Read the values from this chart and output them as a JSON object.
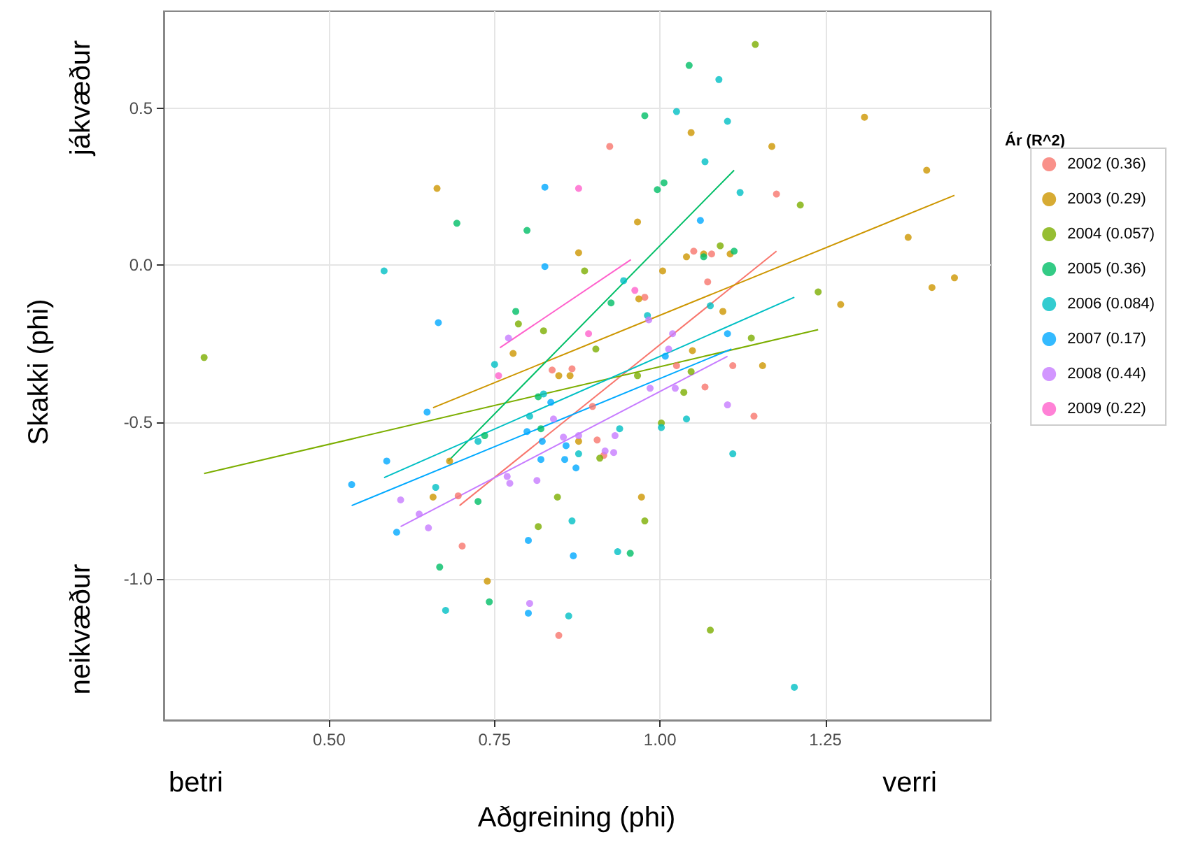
{
  "chart_data": {
    "type": "scatter",
    "xlabel": "Aðgreining (phi)",
    "ylabel": "Skakki (phi)",
    "legend_title": "Ár (R^2)",
    "annotations": [
      "jákvæður",
      "neikvæður",
      "betri",
      "verri"
    ],
    "xlim": [
      0.25,
      1.5
    ],
    "ylim": [
      -1.45,
      0.81
    ],
    "xticks": [
      {
        "value": 0.5,
        "label": "0.50"
      },
      {
        "value": 0.75,
        "label": "0.75"
      },
      {
        "value": 1,
        "label": "1.00"
      },
      {
        "value": 1.25,
        "label": "1.25"
      }
    ],
    "yticks": [
      {
        "value": -1,
        "label": "-1.0"
      },
      {
        "value": -0.5,
        "label": "-0.5"
      },
      {
        "value": 0,
        "label": "0.0"
      },
      {
        "value": 0.5,
        "label": "0.5"
      }
    ],
    "grid": true,
    "legend": "right",
    "marker": "circle",
    "series": [
      {
        "name": "2002 (0.36)",
        "color": "#f8766d",
        "x": [
          0.924,
          1.176,
          1.051,
          1.078,
          0.977,
          1.072,
          0.837,
          0.867,
          0.898,
          0.905,
          0.915,
          0.695,
          0.701,
          0.847,
          1.025,
          1.068,
          1.11,
          1.142
        ],
        "values": [
          0.379,
          0.227,
          0.045,
          0.036,
          -0.102,
          -0.053,
          -0.334,
          -0.33,
          -0.45,
          -0.557,
          -0.606,
          -0.735,
          -0.895,
          -1.18,
          -0.32,
          -0.388,
          -0.32,
          -0.481
        ]
      },
      {
        "name": "2003 (0.29)",
        "color": "#cd9600",
        "x": [
          0.663,
          1.047,
          0.966,
          0.877,
          1.04,
          1.066,
          1.106,
          1.004,
          0.968,
          0.778,
          1.049,
          1.169,
          1.309,
          1.403,
          1.375,
          1.445,
          1.411,
          1.273,
          1.095,
          1.155,
          0.657,
          0.847,
          0.864,
          0.877,
          0.972,
          0.739,
          0.682
        ],
        "values": [
          0.245,
          0.423,
          0.138,
          0.04,
          0.027,
          0.036,
          0.036,
          -0.018,
          -0.107,
          -0.281,
          -0.272,
          0.379,
          0.472,
          0.303,
          0.089,
          -0.04,
          -0.071,
          -0.125,
          -0.147,
          -0.32,
          -0.739,
          -0.352,
          -0.352,
          -0.561,
          -0.739,
          -1.007,
          -0.624
        ]
      },
      {
        "name": "2004 (0.057)",
        "color": "#7cae00",
        "x": [
          0.311,
          0.886,
          0.786,
          0.824,
          0.903,
          1.144,
          1.212,
          1.091,
          1.239,
          1.138,
          0.966,
          1.047,
          1.036,
          1.002,
          0.909,
          0.845,
          0.816,
          0.977,
          1.076
        ],
        "values": [
          -0.294,
          -0.018,
          -0.187,
          -0.209,
          -0.267,
          0.704,
          0.192,
          0.062,
          -0.085,
          -0.232,
          -0.352,
          -0.339,
          -0.405,
          -0.503,
          -0.615,
          -0.739,
          -0.833,
          -0.815,
          -1.163
        ]
      },
      {
        "name": "2005 (0.36)",
        "color": "#00be67",
        "x": [
          0.693,
          0.799,
          0.977,
          1.044,
          0.996,
          1.006,
          1.066,
          1.112,
          0.926,
          0.782,
          0.667,
          0.725,
          0.735,
          0.82,
          0.816,
          0.742,
          0.955
        ],
        "values": [
          0.134,
          0.111,
          0.477,
          0.637,
          0.241,
          0.263,
          0.027,
          0.045,
          -0.12,
          -0.147,
          -0.962,
          -0.753,
          -0.543,
          -0.521,
          -0.419,
          -1.073,
          -0.918
        ]
      },
      {
        "name": "2006 (0.084)",
        "color": "#00bfc4",
        "x": [
          0.583,
          1.025,
          1.068,
          1.089,
          1.102,
          1.121,
          0.945,
          0.981,
          1.076,
          0.75,
          0.661,
          0.676,
          0.725,
          0.803,
          0.824,
          0.939,
          0.877,
          0.867,
          0.936,
          1.002,
          1.04,
          0.862,
          1.11,
          1.203
        ],
        "values": [
          -0.018,
          0.49,
          0.33,
          0.592,
          0.459,
          0.232,
          -0.049,
          -0.16,
          -0.129,
          -0.316,
          -0.708,
          -1.1,
          -0.561,
          -0.481,
          -0.41,
          -0.521,
          -0.601,
          -0.815,
          -0.913,
          -0.517,
          -0.49,
          -1.118,
          -0.601,
          -1.345
        ]
      },
      {
        "name": "2007 (0.17)",
        "color": "#00a9ff",
        "x": [
          0.665,
          0.826,
          0.826,
          1.061,
          1.008,
          1.102,
          0.648,
          0.587,
          0.534,
          0.602,
          0.835,
          0.799,
          0.822,
          0.82,
          0.858,
          0.856,
          0.873,
          0.801,
          0.869,
          0.801
        ],
        "values": [
          -0.183,
          0.249,
          -0.004,
          0.143,
          -0.29,
          -0.218,
          -0.468,
          -0.624,
          -0.699,
          -0.851,
          -0.437,
          -0.53,
          -0.561,
          -0.619,
          -0.575,
          -0.619,
          -0.646,
          -0.877,
          -0.926,
          -1.109
        ]
      },
      {
        "name": "2008 (0.44)",
        "color": "#c77cff",
        "x": [
          0.771,
          1.019,
          0.983,
          1.013,
          0.608,
          0.636,
          0.65,
          0.839,
          0.854,
          0.877,
          0.917,
          0.93,
          0.932,
          0.985,
          1.023,
          0.769,
          0.773,
          0.814,
          0.803,
          1.102
        ],
        "values": [
          -0.232,
          -0.218,
          -0.174,
          -0.267,
          -0.748,
          -0.793,
          -0.837,
          -0.49,
          -0.548,
          -0.543,
          -0.592,
          -0.597,
          -0.543,
          -0.392,
          -0.392,
          -0.673,
          -0.695,
          -0.686,
          -1.078,
          -0.445
        ]
      },
      {
        "name": "2009 (0.22)",
        "color": "#ff61cc",
        "x": [
          0.877,
          0.962,
          0.892,
          0.756
        ],
        "values": [
          0.245,
          -0.08,
          -0.218,
          -0.352
        ]
      },
      {
        "type": "line",
        "marker": "none",
        "color": "#f8766d",
        "x": [
          0.697,
          1.176
        ],
        "values": [
          -0.766,
          0.045
        ]
      },
      {
        "type": "line",
        "marker": "none",
        "color": "#cd9600",
        "x": [
          0.657,
          1.445
        ],
        "values": [
          -0.454,
          0.223
        ]
      },
      {
        "type": "line",
        "marker": "none",
        "color": "#7cae00",
        "x": [
          0.311,
          1.239
        ],
        "values": [
          -0.664,
          -0.205
        ]
      },
      {
        "type": "line",
        "marker": "none",
        "color": "#00be67",
        "x": [
          0.68,
          1.112
        ],
        "values": [
          -0.624,
          0.303
        ]
      },
      {
        "type": "line",
        "marker": "none",
        "color": "#00bfc4",
        "x": [
          0.583,
          1.203
        ],
        "values": [
          -0.677,
          -0.102
        ]
      },
      {
        "type": "line",
        "marker": "none",
        "color": "#00a9ff",
        "x": [
          0.534,
          1.108
        ],
        "values": [
          -0.766,
          -0.267
        ]
      },
      {
        "type": "line",
        "marker": "none",
        "color": "#c77cff",
        "x": [
          0.608,
          1.102
        ],
        "values": [
          -0.833,
          -0.29
        ]
      },
      {
        "type": "line",
        "marker": "none",
        "color": "#ff61cc",
        "x": [
          0.758,
          0.956
        ],
        "values": [
          -0.263,
          0.018
        ]
      }
    ]
  }
}
